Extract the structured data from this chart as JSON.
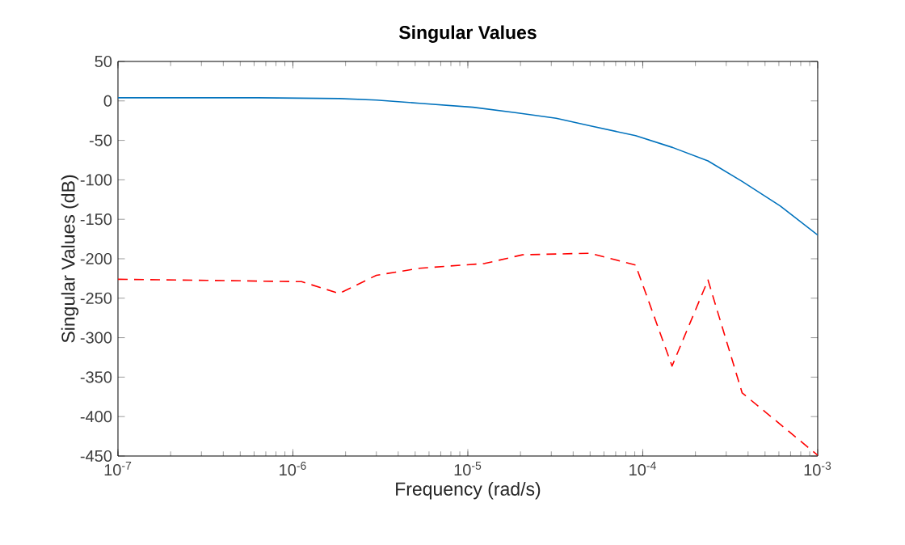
{
  "chart_data": {
    "type": "line",
    "title": "Singular Values",
    "xlabel": "Frequency (rad/s)",
    "ylabel": "Singular Values (dB)",
    "log": "x",
    "grid": false,
    "xlim": [
      1e-07,
      0.001
    ],
    "ylim": [
      -450,
      50
    ],
    "xticks": [
      {
        "value": 1e-07,
        "label": "10$^{-7}$"
      },
      {
        "value": 1e-06,
        "label": "10$^{-6}$"
      },
      {
        "value": 1e-05,
        "label": "10$^{-5}$"
      },
      {
        "value": 0.0001,
        "label": "10$^{-4}$"
      },
      {
        "value": 0.001,
        "label": "10$^{-3}$"
      }
    ],
    "yticks": [
      50,
      0,
      -50,
      -100,
      -150,
      -200,
      -250,
      -300,
      -350,
      -400,
      -450
    ],
    "series": [
      {
        "color": "#0072bd",
        "line_style": "solid",
        "x": [
          1e-07,
          6.3e-07,
          1.84e-06,
          3e-06,
          5.3e-06,
          1.07e-05,
          1.9e-05,
          3.2e-05,
          5.1e-05,
          9.1e-05,
          0.000148,
          0.000236,
          0.00037,
          0.00061,
          0.001
        ],
        "values": [
          4,
          4,
          3,
          1,
          -3,
          -8,
          -15,
          -22,
          -32,
          -44,
          -59,
          -76,
          -102,
          -133,
          -170
        ]
      },
      {
        "color": "#ff0000",
        "line_style": "dashed",
        "x": [
          1e-07,
          1.12e-06,
          1.84e-06,
          3e-06,
          5.3e-06,
          1.25e-05,
          2.05e-05,
          5e-05,
          9.1e-05,
          0.000147,
          0.000236,
          0.00037,
          0.001
        ],
        "values": [
          -226,
          -229,
          -244,
          -221,
          -212,
          -206,
          -195,
          -193,
          -208,
          -336,
          -227,
          -370,
          -449
        ]
      }
    ]
  }
}
